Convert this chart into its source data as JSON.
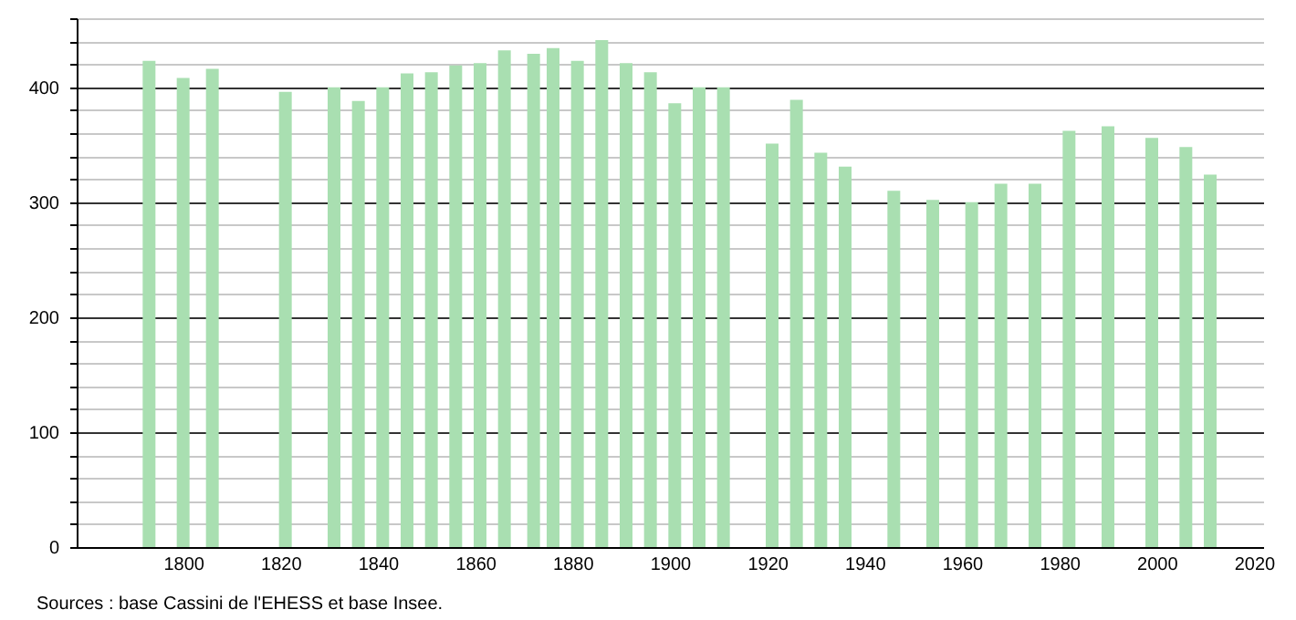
{
  "chart_data": {
    "type": "bar",
    "color": "#a9dfb1",
    "x": [
      1793,
      1800,
      1806,
      1821,
      1831,
      1836,
      1841,
      1846,
      1851,
      1856,
      1861,
      1866,
      1872,
      1876,
      1881,
      1886,
      1891,
      1896,
      1901,
      1906,
      1911,
      1921,
      1926,
      1931,
      1936,
      1946,
      1954,
      1962,
      1968,
      1975,
      1982,
      1990,
      1999,
      2006,
      2011
    ],
    "values": [
      423,
      408,
      416,
      396,
      400,
      388,
      400,
      412,
      413,
      419,
      421,
      432,
      429,
      434,
      423,
      441,
      421,
      413,
      386,
      400,
      400,
      351,
      389,
      343,
      331,
      310,
      302,
      300,
      316,
      316,
      362,
      366,
      356,
      348,
      324
    ],
    "xlim": [
      1780,
      2020
    ],
    "xticks": [
      1800,
      1820,
      1840,
      1860,
      1880,
      1900,
      1920,
      1940,
      1960,
      1980,
      2000,
      2020
    ],
    "ylim": [
      0,
      460
    ],
    "yticks": [
      0,
      {
        "value": 20,
        "label": null
      },
      {
        "value": 40,
        "label": null
      },
      {
        "value": 60,
        "label": null
      },
      {
        "value": 80,
        "label": null
      },
      100,
      {
        "value": 120,
        "label": null
      },
      {
        "value": 140,
        "label": null
      },
      {
        "value": 160,
        "label": null
      },
      {
        "value": 180,
        "label": null
      },
      200,
      {
        "value": 220,
        "label": null
      },
      {
        "value": 240,
        "label": null
      },
      {
        "value": 260,
        "label": null
      },
      {
        "value": 280,
        "label": null
      },
      300,
      {
        "value": 320,
        "label": null
      },
      {
        "value": 340,
        "label": null
      },
      {
        "value": 360,
        "label": null
      },
      {
        "value": 380,
        "label": null
      },
      400,
      {
        "value": 420,
        "label": null
      },
      {
        "value": 440,
        "label": null
      },
      {
        "value": 460,
        "label": null
      }
    ],
    "grid": "y",
    "annotations": [
      "Sources : base Cassini de l'EHESS et base Insee."
    ]
  }
}
